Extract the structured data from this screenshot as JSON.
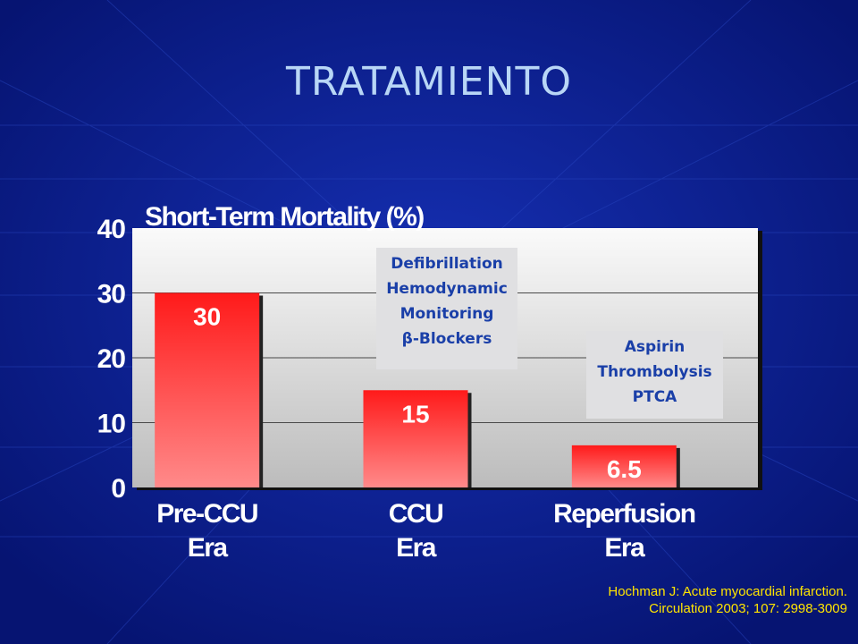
{
  "slide": {
    "title": "TRATAMIENTO"
  },
  "chart_data": {
    "type": "bar",
    "ylabel": "Short-Term Mortality (%)",
    "xlabel": "",
    "ylim": [
      0,
      40
    ],
    "yticks": [
      0,
      10,
      20,
      30,
      40
    ],
    "grid": true,
    "categories": [
      [
        "Pre-CCU",
        "Era"
      ],
      [
        "CCU",
        "Era"
      ],
      [
        "Reperfusion",
        "Era"
      ]
    ],
    "values": [
      30,
      15,
      6.5
    ],
    "value_labels": [
      "30",
      "15",
      "6.5"
    ],
    "bar_color_top": "#ff1a1a",
    "bar_color_bottom": "#ff8a8a"
  },
  "annotations": [
    {
      "lines": [
        "Defibrillation",
        "Hemodynamic",
        "Monitoring",
        "β-Blockers"
      ]
    },
    {
      "lines": [
        "Aspirin",
        "Thrombolysis",
        "PTCA"
      ]
    }
  ],
  "citation": {
    "line1": "Hochman J: Acute myocardial infarction.",
    "line2": "Circulation 2003; 107: 2998-3009"
  }
}
